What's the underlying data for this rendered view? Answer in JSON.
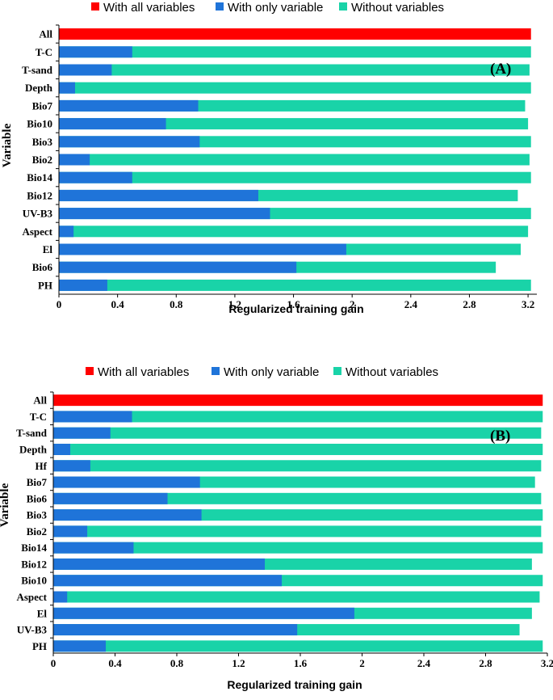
{
  "colors": {
    "all": "#ff0000",
    "only": "#1f74d9",
    "without": "#19d3a8"
  },
  "chart_data": [
    {
      "type": "bar",
      "orientation": "horizontal",
      "panel_label": "(A)",
      "legend": [
        "With all variables",
        "With only variable",
        "Without variables"
      ],
      "xlabel": "Regularized training gain",
      "ylabel": "Variable",
      "xlim": [
        0,
        3.26
      ],
      "xticks": [
        "0",
        "0.4",
        "0.8",
        "1.2",
        "1.6",
        "2",
        "2.4",
        "2.8",
        "3.2"
      ],
      "categories": [
        "All",
        "T-C",
        "T-sand",
        "Depth",
        "Bio7",
        "Bio10",
        "Bio3",
        "Bio2",
        "Bio14",
        "Bio12",
        "UV-B3",
        "Aspect",
        "El",
        "Bio6",
        "PH"
      ],
      "series": [
        {
          "name": "With all variables",
          "values": [
            3.22,
            null,
            null,
            null,
            null,
            null,
            null,
            null,
            null,
            null,
            null,
            null,
            null,
            null,
            null
          ]
        },
        {
          "name": "With only variable",
          "values": [
            null,
            0.5,
            0.36,
            0.11,
            0.95,
            0.73,
            0.96,
            0.21,
            0.5,
            1.36,
            1.44,
            0.1,
            1.96,
            1.62,
            0.33
          ]
        },
        {
          "name": "Without variables",
          "values": [
            null,
            3.22,
            3.21,
            3.22,
            3.18,
            3.2,
            3.22,
            3.21,
            3.22,
            3.13,
            3.22,
            3.2,
            3.15,
            2.98,
            3.22
          ]
        }
      ]
    },
    {
      "type": "bar",
      "orientation": "horizontal",
      "panel_label": "(B)",
      "legend": [
        "With all variables",
        "With only variable",
        "Without variables"
      ],
      "xlabel": "Regularized training gain",
      "ylabel": "Variable",
      "xlim": [
        0,
        3.2
      ],
      "xticks": [
        "0",
        "0.4",
        "0.8",
        "1.2",
        "1.6",
        "2",
        "2.4",
        "2.8",
        "3.2"
      ],
      "categories": [
        "All",
        "T-C",
        "T-sand",
        "Depth",
        "Hf",
        "Bio7",
        "Bio6",
        "Bio3",
        "Bio2",
        "Bio14",
        "Bio12",
        "Bio10",
        "Aspect",
        "El",
        "UV-B3",
        "PH"
      ],
      "series": [
        {
          "name": "With all variables",
          "values": [
            3.17,
            null,
            null,
            null,
            null,
            null,
            null,
            null,
            null,
            null,
            null,
            null,
            null,
            null,
            null,
            null
          ]
        },
        {
          "name": "With only variable",
          "values": [
            null,
            0.51,
            0.37,
            0.11,
            0.24,
            0.95,
            0.74,
            0.96,
            0.22,
            0.52,
            1.37,
            1.48,
            0.09,
            1.95,
            1.58,
            0.34
          ]
        },
        {
          "name": "Without variables",
          "values": [
            null,
            3.17,
            3.16,
            3.17,
            3.16,
            3.12,
            3.16,
            3.17,
            3.16,
            3.17,
            3.1,
            3.17,
            3.15,
            3.1,
            3.02,
            3.17
          ]
        }
      ]
    }
  ]
}
